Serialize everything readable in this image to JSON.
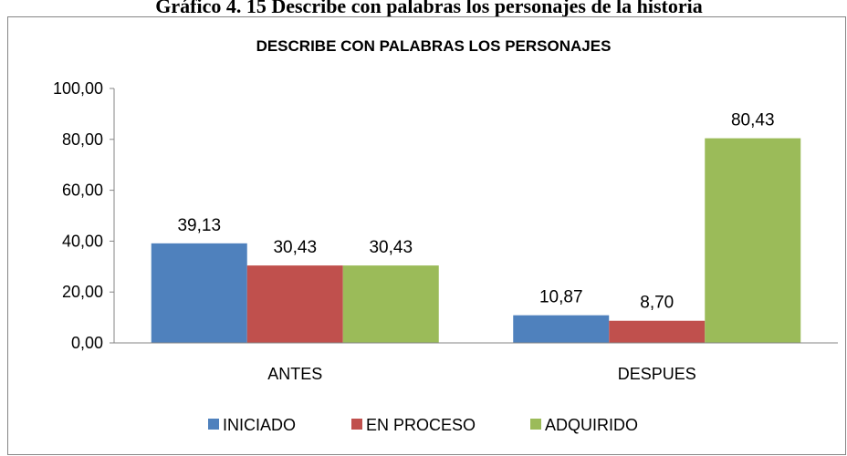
{
  "caption": "Gráfico 4. 15 Describe con palabras los personajes de la historia",
  "chart_data": {
    "type": "bar",
    "title": "DESCRIBE CON PALABRAS LOS PERSONAJES",
    "categories": [
      "ANTES",
      "DESPUES"
    ],
    "series": [
      {
        "name": "INICIADO",
        "color": "#4f81bd",
        "values": [
          39.13,
          10.87
        ],
        "value_labels": [
          "39,13",
          "10,87"
        ]
      },
      {
        "name": "EN PROCESO",
        "color": "#c0504d",
        "values": [
          30.43,
          8.7
        ],
        "value_labels": [
          "30,43",
          "8,70"
        ]
      },
      {
        "name": "ADQUIRIDO",
        "color": "#9bbb59",
        "values": [
          30.43,
          80.43
        ],
        "value_labels": [
          "30,43",
          "80,43"
        ]
      }
    ],
    "ylim": [
      0,
      100
    ],
    "yticks": [
      {
        "value": 0,
        "label": "0,00"
      },
      {
        "value": 20,
        "label": "20,00"
      },
      {
        "value": 40,
        "label": "40,00"
      },
      {
        "value": 60,
        "label": "60,00"
      },
      {
        "value": 80,
        "label": "80,00"
      },
      {
        "value": 100,
        "label": "100,00"
      }
    ],
    "grid": false,
    "legend": "bottom"
  }
}
